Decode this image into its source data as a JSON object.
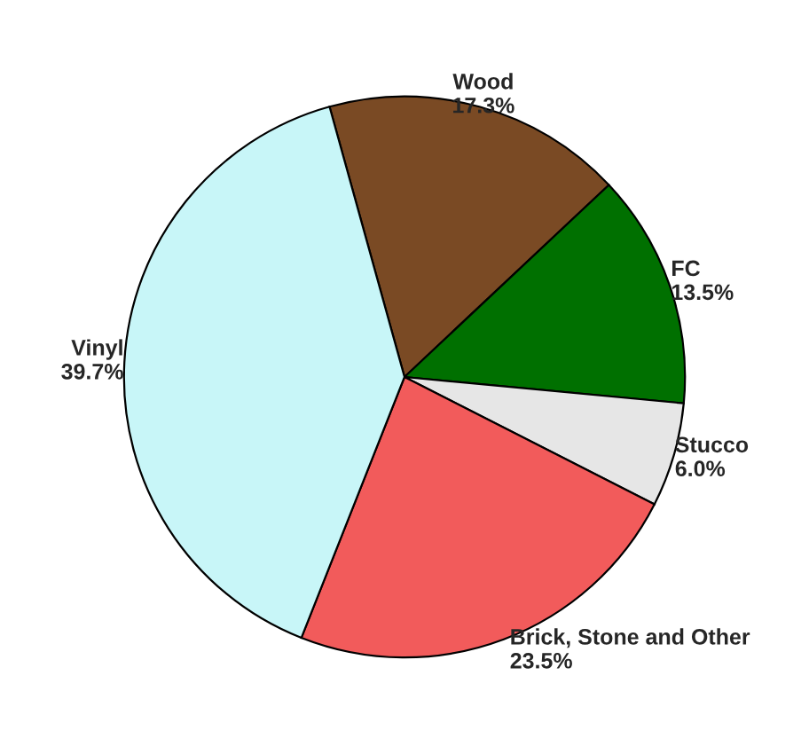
{
  "chart_data": {
    "type": "pie",
    "categories": [
      "Wood",
      "FC",
      "Stucco",
      "Brick, Stone and Other",
      "Vinyl"
    ],
    "values": [
      17.3,
      13.5,
      6.0,
      23.5,
      39.7
    ],
    "value_labels": [
      "17.3%",
      "13.5%",
      "6.0%",
      "23.5%",
      "39.7%"
    ],
    "colors": [
      "#7a4a24",
      "#007000",
      "#e6e6e6",
      "#f25b5b",
      "#c8f6f8"
    ],
    "legend": false
  }
}
